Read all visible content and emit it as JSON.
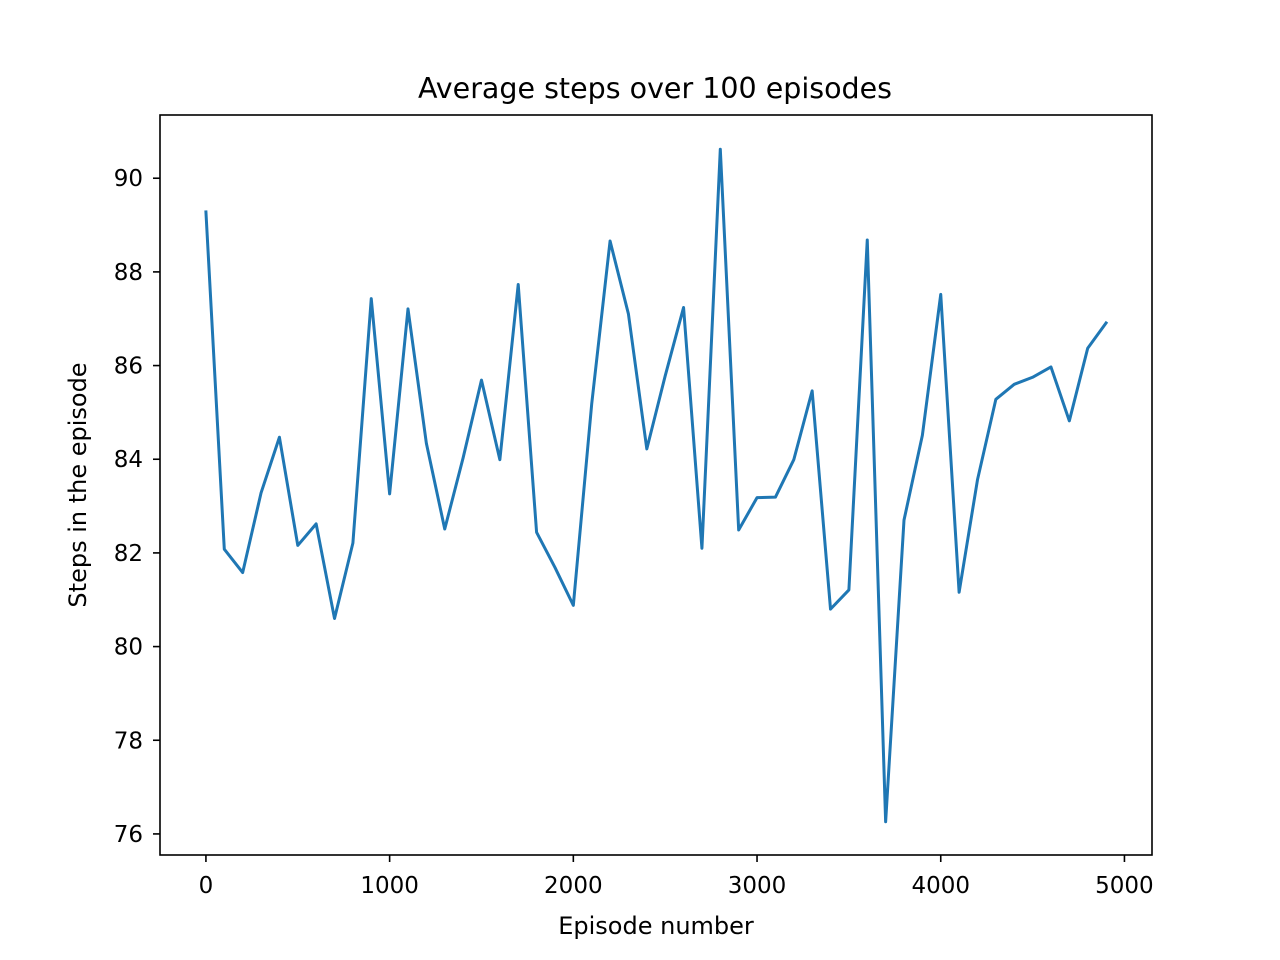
{
  "chart_data": {
    "type": "line",
    "title": "Average steps over 100 episodes",
    "xlabel": "Episode number",
    "ylabel": "Steps in the episode",
    "xlim": [
      -250,
      5150
    ],
    "ylim": [
      75.55,
      91.35
    ],
    "xticks": [
      0,
      1000,
      2000,
      3000,
      4000,
      5000
    ],
    "yticks": [
      76,
      78,
      80,
      82,
      84,
      86,
      88,
      90
    ],
    "xtick_labels": [
      "0",
      "1000",
      "2000",
      "3000",
      "4000",
      "5000"
    ],
    "ytick_labels": [
      "76",
      "78",
      "80",
      "82",
      "84",
      "86",
      "88",
      "90"
    ],
    "grid": false,
    "series": [
      {
        "color": "#1f77b4",
        "x": [
          0,
          100,
          200,
          300,
          400,
          500,
          600,
          700,
          800,
          900,
          1000,
          1100,
          1200,
          1300,
          1400,
          1500,
          1600,
          1700,
          1800,
          1900,
          2000,
          2100,
          2200,
          2300,
          2400,
          2500,
          2600,
          2700,
          2800,
          2900,
          3000,
          3100,
          3200,
          3300,
          3400,
          3500,
          3600,
          3700,
          3800,
          3900,
          4000,
          4100,
          4200,
          4300,
          4400,
          4500,
          4600,
          4700,
          4800,
          4900
        ],
        "y": [
          89.28,
          82.08,
          81.58,
          83.28,
          84.47,
          82.16,
          82.62,
          80.6,
          82.21,
          87.43,
          83.26,
          87.21,
          84.34,
          82.51,
          84.03,
          85.69,
          83.99,
          87.73,
          82.44,
          81.69,
          80.88,
          85.18,
          88.66,
          87.1,
          84.22,
          85.78,
          87.24,
          82.1,
          90.62,
          82.49,
          83.18,
          83.19,
          83.99,
          85.46,
          80.8,
          81.21,
          88.68,
          76.26,
          82.7,
          84.51,
          87.52,
          81.16,
          83.56,
          85.28,
          85.6,
          85.75,
          85.97,
          84.82,
          86.37,
          86.91
        ]
      }
    ]
  }
}
